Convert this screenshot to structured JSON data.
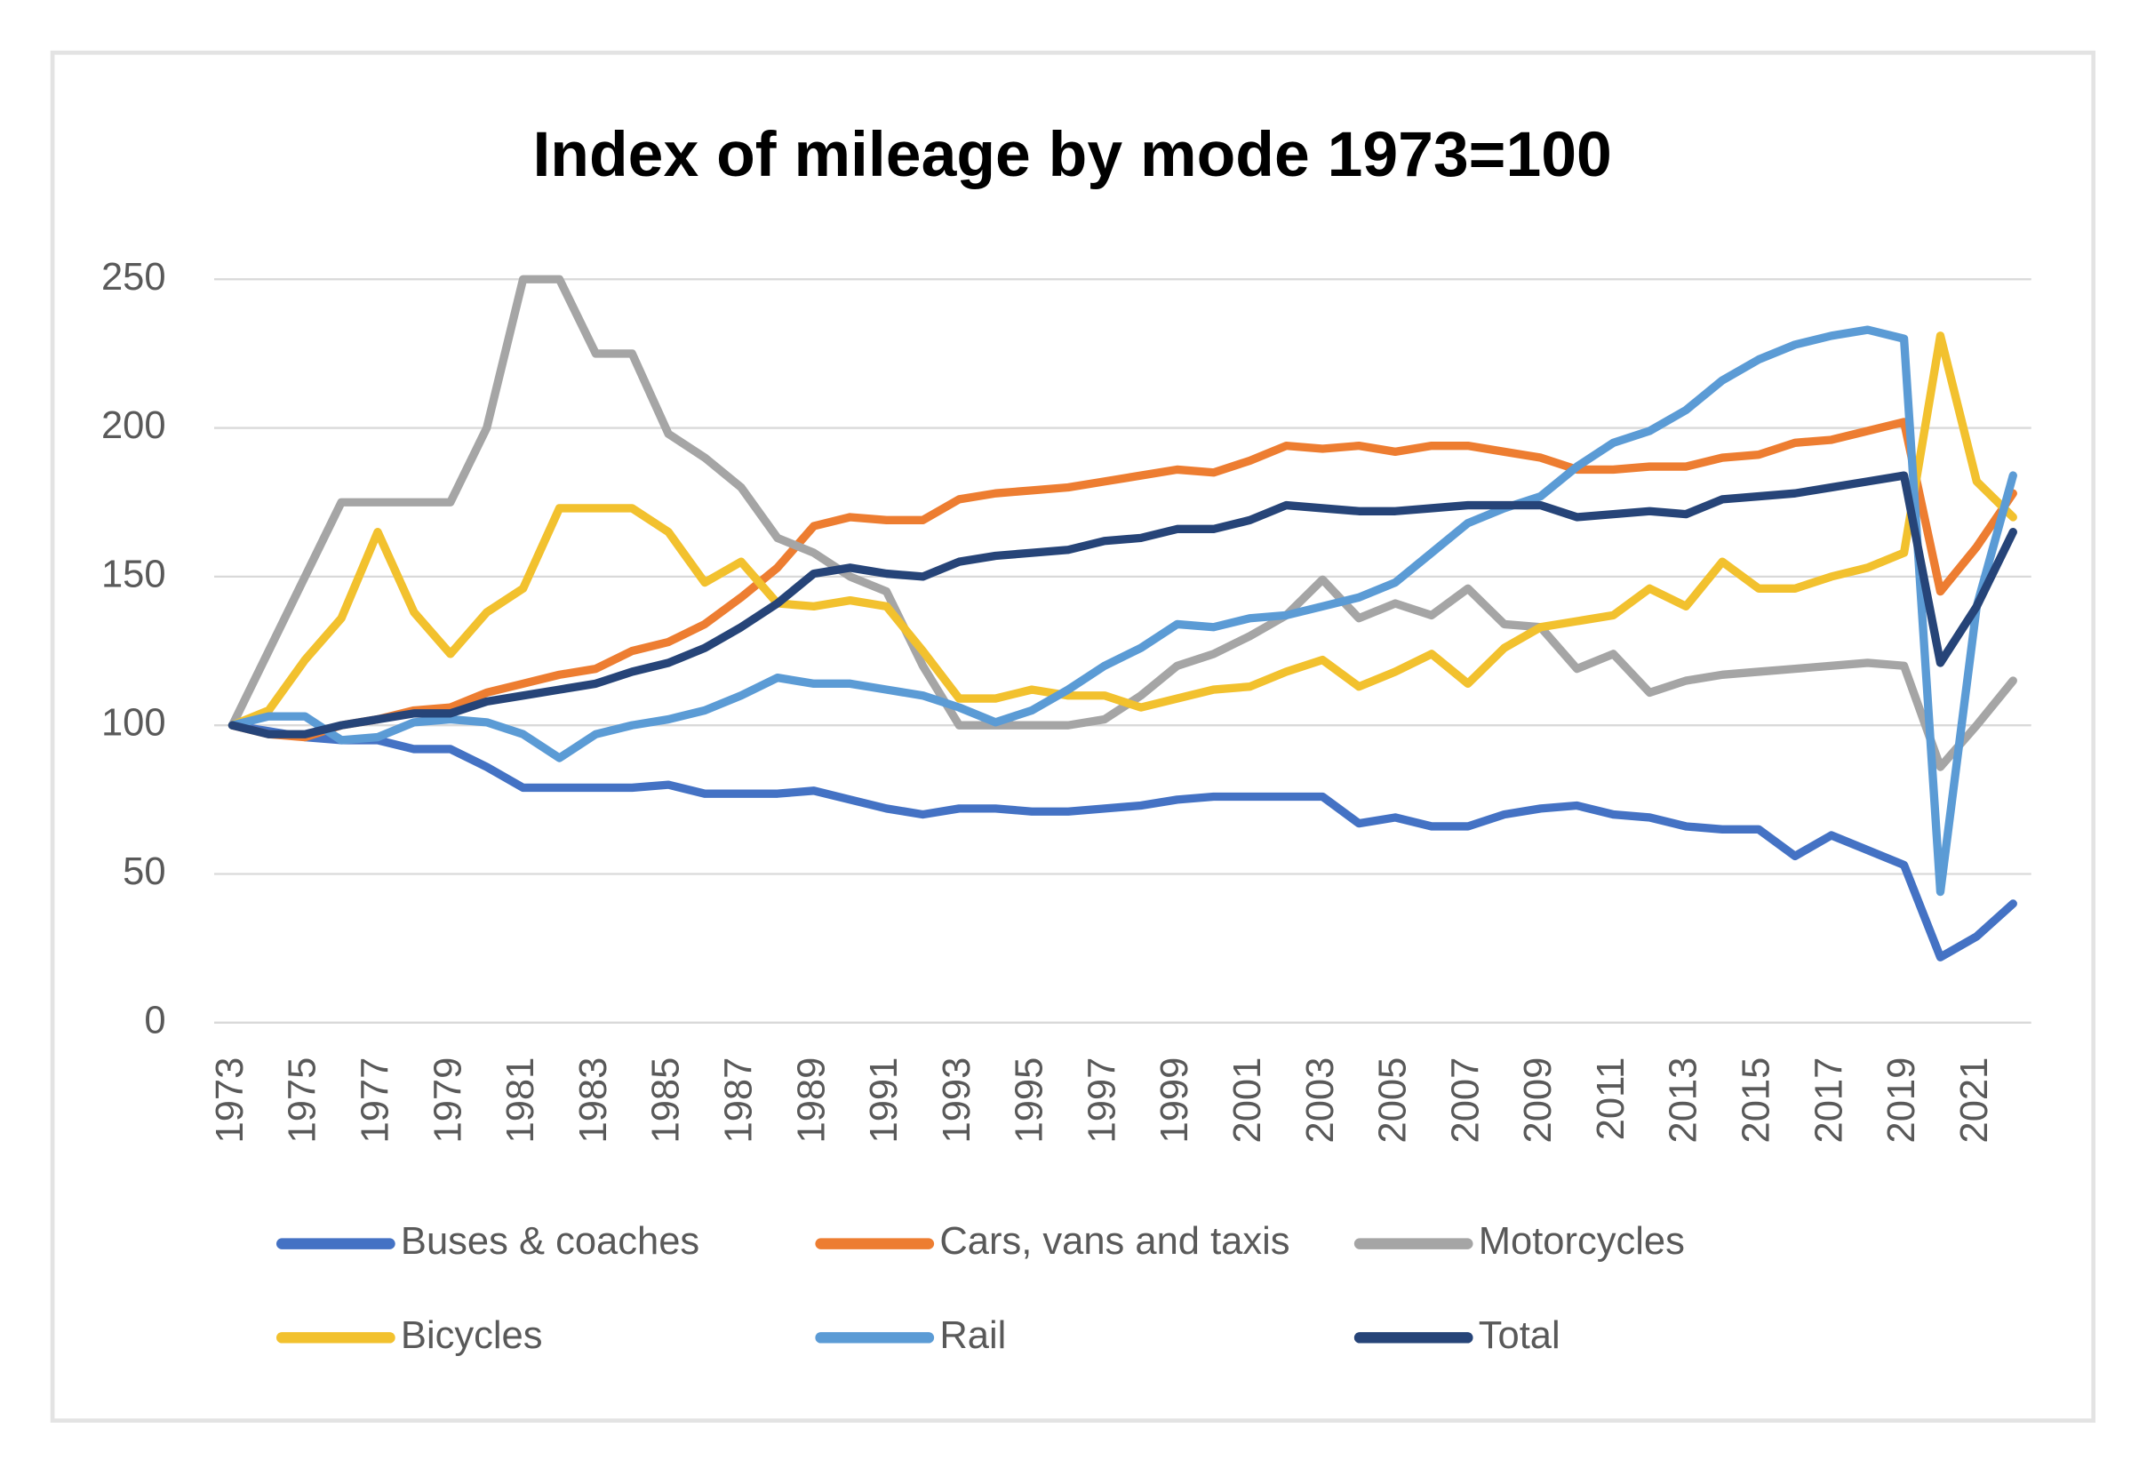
{
  "chart_data": {
    "type": "line",
    "title": "Index of mileage by mode 1973=100",
    "categories": [
      "1973",
      null,
      "1975",
      null,
      "1977",
      null,
      "1979",
      null,
      "1981",
      null,
      "1983",
      null,
      "1985",
      null,
      "1987",
      null,
      "1989",
      null,
      "1991",
      null,
      "1993",
      null,
      "1995",
      null,
      "1997",
      null,
      "1999",
      null,
      "2001",
      null,
      "2003",
      null,
      "2005",
      null,
      "2007",
      null,
      "2009",
      null,
      "2011",
      null,
      "2013",
      null,
      "2015",
      null,
      "2017",
      null,
      "2019",
      null,
      "2021",
      null
    ],
    "ylim": [
      0,
      250
    ],
    "yticks": [
      0,
      50,
      100,
      150,
      200,
      250
    ],
    "grid": true,
    "series": [
      {
        "name": "Buses & coaches",
        "color": "#4472c4",
        "values": [
          100,
          98,
          96,
          95,
          95,
          92,
          92,
          86,
          79,
          79,
          79,
          79,
          80,
          77,
          77,
          77,
          78,
          75,
          72,
          70,
          72,
          72,
          71,
          71,
          72,
          73,
          75,
          76,
          76,
          76,
          76,
          67,
          69,
          66,
          66,
          70,
          72,
          73,
          70,
          69,
          66,
          65,
          65,
          56,
          63,
          58,
          53,
          22,
          29,
          40
        ]
      },
      {
        "name": "Cars, vans and taxis",
        "color": "#ed7d31",
        "values": [
          100,
          97,
          96,
          100,
          102,
          105,
          106,
          111,
          114,
          117,
          119,
          125,
          128,
          134,
          143,
          153,
          167,
          170,
          169,
          169,
          176,
          178,
          179,
          180,
          182,
          184,
          186,
          185,
          189,
          194,
          193,
          194,
          192,
          194,
          194,
          192,
          190,
          186,
          186,
          187,
          187,
          190,
          191,
          195,
          196,
          199,
          202,
          145,
          160,
          178
        ]
      },
      {
        "name": "Motorcycles",
        "color": "#a5a5a5",
        "values": [
          100,
          125,
          150,
          175,
          175,
          175,
          175,
          200,
          250,
          250,
          225,
          225,
          198,
          190,
          180,
          163,
          158,
          150,
          145,
          120,
          100,
          100,
          100,
          100,
          102,
          110,
          120,
          124,
          130,
          137,
          149,
          136,
          141,
          137,
          146,
          134,
          133,
          119,
          124,
          111,
          115,
          117,
          118,
          119,
          120,
          121,
          120,
          86,
          100,
          115
        ]
      },
      {
        "name": "Bicycles",
        "color": "#f2c12e",
        "values": [
          100,
          105,
          122,
          136,
          165,
          138,
          124,
          138,
          146,
          173,
          173,
          173,
          165,
          148,
          155,
          141,
          140,
          142,
          140,
          125,
          109,
          109,
          112,
          110,
          110,
          106,
          109,
          112,
          113,
          118,
          122,
          113,
          118,
          124,
          114,
          126,
          133,
          135,
          137,
          146,
          140,
          155,
          146,
          146,
          150,
          153,
          158,
          231,
          182,
          170
        ]
      },
      {
        "name": "Rail",
        "color": "#5b9bd5",
        "values": [
          100,
          103,
          103,
          95,
          96,
          101,
          102,
          101,
          97,
          89,
          97,
          100,
          102,
          105,
          110,
          116,
          114,
          114,
          112,
          110,
          106,
          101,
          105,
          112,
          120,
          126,
          134,
          133,
          136,
          137,
          140,
          143,
          148,
          158,
          168,
          173,
          177,
          187,
          195,
          199,
          206,
          216,
          223,
          228,
          231,
          233,
          230,
          44,
          140,
          184
        ]
      },
      {
        "name": "Total",
        "color": "#264478",
        "values": [
          100,
          97,
          97,
          100,
          102,
          104,
          104,
          108,
          110,
          112,
          114,
          118,
          121,
          126,
          133,
          141,
          151,
          153,
          151,
          150,
          155,
          157,
          158,
          159,
          162,
          163,
          166,
          166,
          169,
          174,
          173,
          172,
          172,
          173,
          174,
          174,
          174,
          170,
          171,
          172,
          171,
          176,
          177,
          178,
          180,
          182,
          184,
          121,
          140,
          165
        ]
      }
    ]
  }
}
